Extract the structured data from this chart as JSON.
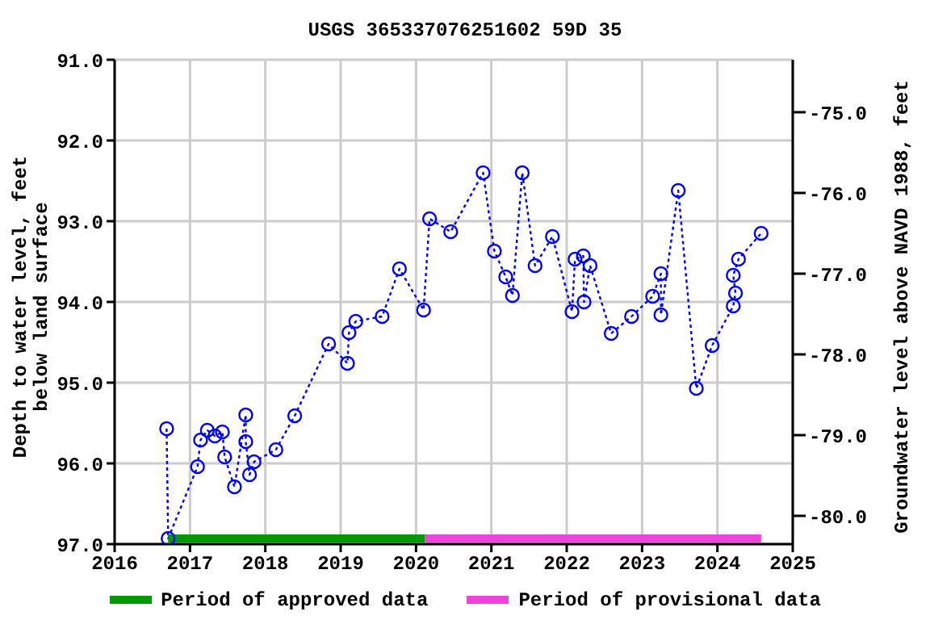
{
  "chart_data": {
    "type": "line",
    "title": "USGS 365337076251602 59D 35",
    "xlabel": null,
    "ylabel": "Depth to water level, feet below land surface",
    "y2label": "Groundwater level above NAVD 1988, feet",
    "xlim": [
      2016,
      2025
    ],
    "xticks": [
      2016,
      2017,
      2018,
      2019,
      2020,
      2021,
      2022,
      2023,
      2024,
      2025
    ],
    "ylim": [
      97,
      91
    ],
    "yticks": [
      {
        "value": 91,
        "label": "91.0"
      },
      {
        "value": 92,
        "label": "92.0"
      },
      {
        "value": 93,
        "label": "93.0"
      },
      {
        "value": 94,
        "label": "94.0"
      },
      {
        "value": 95,
        "label": "95.0"
      },
      {
        "value": 96,
        "label": "96.0"
      },
      {
        "value": 97,
        "label": "97.0"
      }
    ],
    "y2lim": [
      -80.35,
      -74.35
    ],
    "y2ticks": [
      {
        "value": -75,
        "label": "-75.0"
      },
      {
        "value": -76,
        "label": "-76.0"
      },
      {
        "value": -77,
        "label": "-77.0"
      },
      {
        "value": -78,
        "label": "-78.0"
      },
      {
        "value": -79,
        "label": "-79.0"
      },
      {
        "value": -80,
        "label": "-80.0"
      }
    ],
    "grid": true,
    "legend": "bottom",
    "marker": "circle",
    "line_style": "dotted",
    "series": [
      {
        "color": "#0000ff",
        "x": [
          2016.69,
          2016.71,
          2017.1,
          2017.14,
          2017.23,
          2017.33,
          2017.43,
          2017.46,
          2017.59,
          2017.74,
          2017.74,
          2017.79,
          2017.85,
          2018.14,
          2018.39,
          2018.84,
          2019.09,
          2019.11,
          2019.2,
          2019.55,
          2019.78,
          2020.1,
          2020.18,
          2020.46,
          2020.89,
          2021.04,
          2021.19,
          2021.28,
          2021.41,
          2021.58,
          2021.81,
          2022.07,
          2022.11,
          2022.22,
          2022.23,
          2022.31,
          2022.59,
          2022.86,
          2023.14,
          2023.25,
          2023.25,
          2023.48,
          2023.72,
          2023.93,
          2024.21,
          2024.24,
          2024.21,
          2024.28,
          2024.58
        ],
        "values": [
          95.57,
          96.93,
          96.04,
          95.71,
          95.59,
          95.66,
          95.61,
          95.92,
          96.29,
          95.4,
          95.73,
          96.14,
          95.98,
          95.83,
          95.41,
          94.52,
          94.76,
          94.38,
          94.24,
          94.18,
          93.59,
          94.1,
          92.97,
          93.13,
          92.4,
          93.37,
          93.69,
          93.92,
          92.4,
          93.55,
          93.19,
          94.12,
          93.47,
          93.43,
          94.0,
          93.55,
          94.39,
          94.18,
          93.93,
          93.65,
          94.16,
          92.62,
          95.07,
          94.54,
          94.05,
          93.89,
          93.67,
          93.47,
          93.15
        ]
      },
      {
        "name": "Period of approved data",
        "color": "#009900",
        "type": "line",
        "marker": "none",
        "line_style": "solid",
        "x": [
          2016.71,
          2020.12
        ],
        "values": [
          96.93,
          96.93
        ]
      },
      {
        "name": "Period of provisional data",
        "color": "#ee44dd",
        "type": "line",
        "marker": "none",
        "line_style": "solid",
        "x": [
          2020.12,
          2024.58
        ],
        "values": [
          96.93,
          96.93
        ]
      }
    ]
  }
}
